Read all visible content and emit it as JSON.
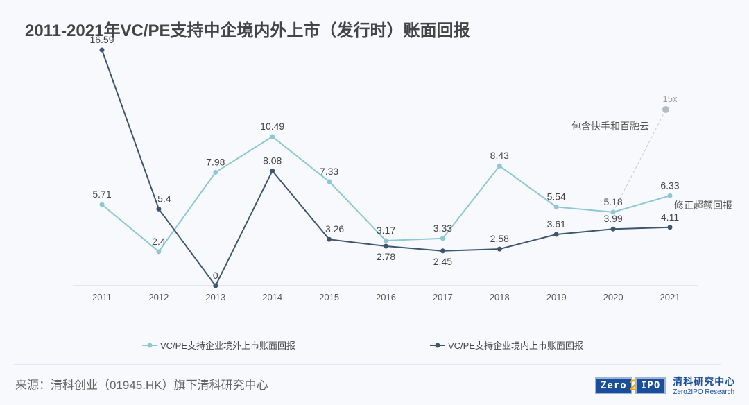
{
  "title": "2011-2021年VC/PE支持中企境内外上市（发行时）账面回报",
  "source": "来源：清科创业（01945.HK）旗下清科研究中心",
  "logo": {
    "box": "Zero",
    "two": "2",
    "ipo": "IPO",
    "cn": "清科研究中心",
    "en": "Zero2IPO Research"
  },
  "chart_data": {
    "type": "line",
    "categories": [
      "2011",
      "2012",
      "2013",
      "2014",
      "2015",
      "2016",
      "2017",
      "2018",
      "2019",
      "2020",
      "2021"
    ],
    "ylim": [
      0,
      16.59
    ],
    "grid": false,
    "legend": "bottom",
    "series": [
      {
        "name": "VC/PE支持企业境外上市账面回报",
        "color": "#8cc8d4",
        "values": [
          5.71,
          2.4,
          7.98,
          10.49,
          7.33,
          3.17,
          3.33,
          8.43,
          5.54,
          5.18,
          6.33
        ]
      },
      {
        "name": "VC/PE支持企业境内上市账面回报",
        "color": "#3e5570",
        "values": [
          16.59,
          5.4,
          0,
          8.08,
          3.26,
          2.78,
          2.45,
          2.58,
          3.61,
          3.99,
          4.11
        ]
      }
    ],
    "annotations": {
      "outlier_label": "15x",
      "outlier_value": 15,
      "outlier_note": "包含快手和百融云",
      "corrected_note": "修正超额回报"
    }
  }
}
